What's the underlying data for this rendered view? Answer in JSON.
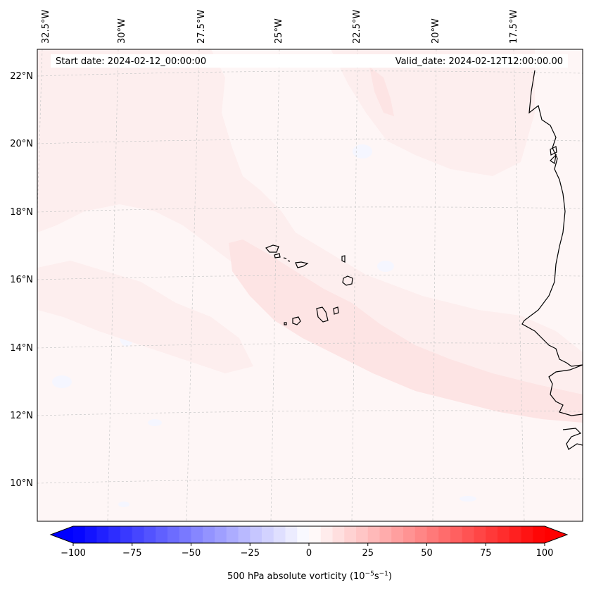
{
  "header": {
    "start_date": "Start date: 2024-02-12_00:00:00",
    "valid_date": "Valid_date: 2024-02-12T12:00:00.00"
  },
  "lon_labels": [
    "32.5°W",
    "30°W",
    "27.5°W",
    "25°W",
    "22.5°W",
    "20°W",
    "17.5°W"
  ],
  "lat_labels": [
    "22°N",
    "20°N",
    "18°N",
    "16°N",
    "14°N",
    "12°N",
    "10°N"
  ],
  "colorbar": {
    "label": "500 hPa absolute vorticity (10",
    "label_exp1": "−5",
    "label_mid": "s",
    "label_exp2": "−1",
    "label_end": ")",
    "min": -100,
    "max": 100,
    "step": 5,
    "ticks": [
      "−100",
      "−75",
      "−50",
      "−25",
      "0",
      "25",
      "50",
      "75",
      "100"
    ],
    "color_low": "#0000ff",
    "color_mid": "#ffffff",
    "color_high": "#ff0000"
  },
  "map": {
    "field_background": "#fef6f6",
    "band_color": "#fde4e4",
    "band_light_color": "#fdeeee",
    "coast_color": "#000000",
    "grid_color": "#c8c8c8"
  }
}
